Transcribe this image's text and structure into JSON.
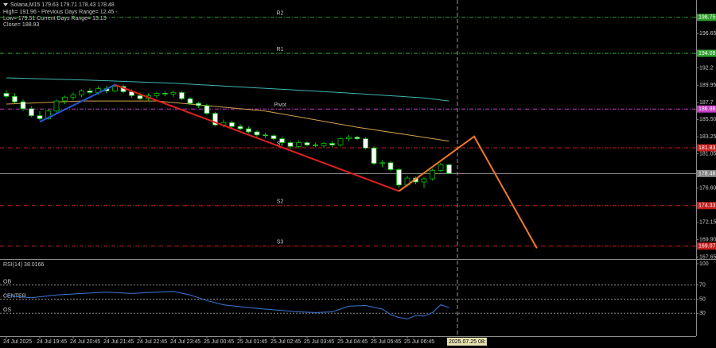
{
  "chart_data": [
    {
      "type": "candlestick",
      "title": "Solana,M15 179.63 179.71 178.43 178.48",
      "info": [
        "High= 191.96 - Previous Days Range= 12.45 -",
        "Low= 179.51   Current Days Range= 13.13",
        "Close= 188.93"
      ],
      "xlim": [
        -0.76,
        82.57
      ],
      "ylim": [
        167.5,
        200.8
      ],
      "yticks": [
        196.65,
        192.2,
        189.95,
        187.7,
        {
          "value": 185.5,
          "label": "185.50"
        },
        183.25,
        181.05,
        {
          "value": 176.6,
          "label": "176.60"
        },
        172.15,
        {
          "value": 169.9,
          "label": "169.90"
        },
        167.65
      ],
      "xticks": [
        {
          "value": 0,
          "label": "24 Jul 2025"
        },
        {
          "value": 4,
          "label": "24 Jul 19:45"
        },
        {
          "value": 8,
          "label": "24 Jul 20:45"
        },
        {
          "value": 12,
          "label": "24 Jul 21:45"
        },
        {
          "value": 16,
          "label": "24 Jul 22:45"
        },
        {
          "value": 20,
          "label": "24 Jul 23:45"
        },
        {
          "value": 24,
          "label": "25 Jul 00:45"
        },
        {
          "value": 28,
          "label": "25 Jul 01:45"
        },
        {
          "value": 32,
          "label": "25 Jul 02:45"
        },
        {
          "value": 36,
          "label": "25 Jul 03:45"
        },
        {
          "value": 40,
          "label": "25 Jul 04:45"
        },
        {
          "value": 44,
          "label": "25 Jul 05:45"
        },
        {
          "value": 48,
          "label": "25 Jul 06:45"
        }
      ],
      "cursor": {
        "value": 54,
        "label": "2025.07.25 08:15"
      },
      "up_color": "#000000",
      "down_color": "#ffffff",
      "outline_color": "#00c000",
      "candles": {
        "open": [
          188.9,
          188.5,
          187.8,
          186.9,
          186.0,
          185.6,
          186.6,
          187.9,
          188.4,
          188.7,
          189.2,
          189.0,
          189.5,
          189.2,
          189.8,
          189.1,
          188.6,
          188.2,
          188.6,
          188.9,
          188.8,
          189.0,
          188.2,
          187.6,
          187.3,
          186.3,
          184.8,
          185.1,
          184.6,
          184.3,
          183.9,
          183.5,
          183.4,
          183.0,
          182.5,
          182.0,
          182.5,
          182.2,
          182.1,
          182.4,
          182.2,
          183.0,
          183.2,
          183.0,
          181.8,
          179.8,
          179.9,
          179.0,
          177.0,
          177.9,
          177.4,
          177.8,
          178.9,
          179.63
        ],
        "high": [
          189.3,
          188.9,
          188.1,
          187.2,
          186.6,
          186.8,
          188.1,
          188.6,
          189.0,
          189.4,
          189.6,
          189.8,
          189.9,
          190.1,
          190.0,
          189.4,
          189.0,
          188.9,
          189.1,
          189.2,
          189.3,
          189.2,
          188.4,
          187.8,
          187.5,
          186.5,
          185.5,
          185.3,
          184.9,
          184.6,
          184.1,
          183.8,
          183.6,
          183.3,
          182.7,
          182.8,
          182.7,
          182.5,
          182.6,
          182.7,
          183.2,
          183.5,
          183.4,
          183.2,
          182.0,
          180.2,
          180.1,
          179.2,
          178.2,
          178.1,
          178.0,
          179.1,
          179.9,
          179.71
        ],
        "low": [
          188.2,
          187.6,
          186.6,
          185.8,
          185.4,
          185.5,
          186.4,
          187.5,
          188.0,
          188.4,
          188.8,
          188.7,
          188.9,
          189.0,
          188.9,
          188.3,
          188.0,
          187.9,
          188.3,
          188.5,
          188.4,
          188.0,
          187.4,
          187.0,
          186.1,
          184.6,
          184.5,
          184.4,
          184.1,
          183.7,
          183.2,
          183.1,
          182.8,
          182.3,
          181.7,
          181.8,
          182.0,
          181.9,
          181.8,
          181.9,
          182.0,
          182.7,
          182.8,
          181.6,
          179.6,
          179.3,
          178.8,
          176.6,
          176.8,
          177.1,
          176.6,
          177.6,
          178.7,
          178.43
        ],
        "close": [
          188.5,
          187.8,
          186.9,
          186.0,
          185.6,
          186.6,
          187.9,
          188.4,
          188.7,
          189.2,
          189.0,
          189.5,
          189.2,
          189.8,
          189.1,
          188.6,
          188.2,
          188.6,
          188.9,
          188.8,
          189.0,
          188.2,
          187.6,
          187.3,
          186.3,
          184.8,
          185.1,
          184.6,
          184.3,
          183.9,
          183.5,
          183.4,
          183.0,
          182.5,
          182.0,
          182.5,
          182.2,
          182.1,
          182.4,
          182.2,
          183.0,
          183.2,
          183.0,
          181.8,
          179.8,
          179.9,
          179.0,
          177.0,
          177.9,
          177.4,
          177.8,
          178.9,
          179.63,
          178.48
        ]
      },
      "levels": [
        {
          "name": "R2",
          "value": 198.75,
          "color": "#2fa02f"
        },
        {
          "name": "R1",
          "value": 194.09,
          "color": "#2fa02f"
        },
        {
          "name": "Pivot",
          "value": 186.86,
          "color": "#c23cc2"
        },
        {
          "name": "S1",
          "value": 181.83,
          "color": "#c41e1e"
        },
        {
          "name": "S2",
          "value": 174.33,
          "color": "#c41e1e"
        },
        {
          "name": "S3",
          "value": 169.07,
          "color": "#c41e1e"
        }
      ],
      "last_price": {
        "value": 178.48,
        "color": "#808080"
      },
      "moving_averages": [
        {
          "color": "#3fb6b0",
          "x": [
            0,
            10,
            20,
            30,
            40,
            50,
            53
          ],
          "values": [
            190.9,
            190.6,
            190.2,
            189.6,
            189.0,
            188.3,
            187.9
          ]
        },
        {
          "color": "#d4a24a",
          "x": [
            0,
            9,
            18,
            31,
            42,
            53
          ],
          "values": [
            187.5,
            187.9,
            187.9,
            186.6,
            184.5,
            182.7
          ]
        }
      ],
      "trend_lines": [
        {
          "color": "#2a55d8",
          "x": [
            4,
            13
          ],
          "values": [
            185.2,
            190.0
          ]
        },
        {
          "color": "#e02020",
          "x": [
            13,
            47
          ],
          "values": [
            190.0,
            176.2
          ]
        },
        {
          "color": "#f07a28",
          "x": [
            47,
            56,
            63.5
          ],
          "values": [
            176.2,
            183.3,
            168.8
          ]
        }
      ]
    },
    {
      "type": "line",
      "title": "RSI(14) 38.0166",
      "xlim": [
        -0.76,
        82.57
      ],
      "ylim": [
        0,
        100
      ],
      "yticks": [
        30,
        50,
        70,
        100
      ],
      "levels": [
        {
          "name": "OB",
          "value": 70
        },
        {
          "name": "CENTER",
          "value": 50
        },
        {
          "name": "OS",
          "value": 30
        }
      ],
      "series": [
        {
          "color": "#3f78d6",
          "x": [
            0,
            3,
            6,
            9,
            12,
            15,
            18,
            20,
            22,
            24,
            26,
            29,
            32,
            35,
            37,
            39,
            41,
            43,
            45,
            46,
            47,
            48,
            49,
            50,
            51,
            52,
            53
          ],
          "values": [
            55,
            52,
            56,
            58,
            60,
            58,
            60,
            61,
            56,
            48,
            42,
            38,
            35,
            32,
            31,
            32,
            40,
            41,
            36,
            28,
            24,
            22,
            27,
            26,
            31,
            42,
            38.0166
          ]
        }
      ]
    }
  ]
}
